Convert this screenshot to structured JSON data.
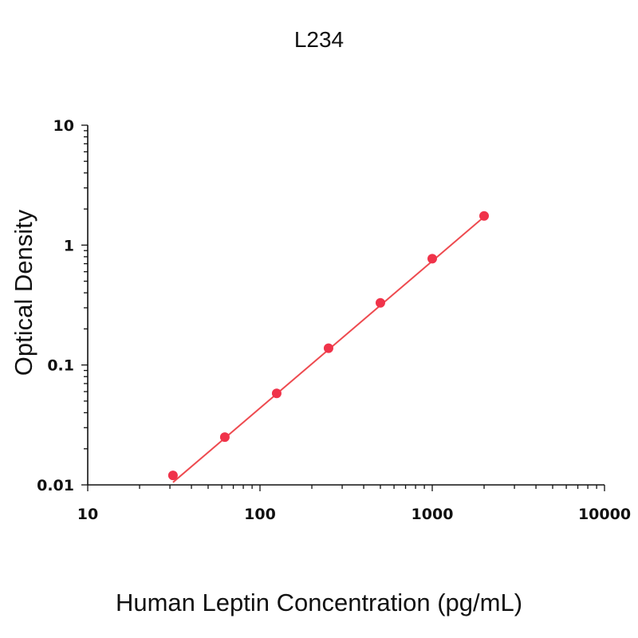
{
  "chart_data": {
    "type": "scatter",
    "title": "L234",
    "xlabel": "Human Leptin Concentration (pg/mL)",
    "ylabel": "Optical Density",
    "x_scale": "log",
    "y_scale": "log",
    "xlim": [
      10,
      10000
    ],
    "ylim": [
      0.01,
      10
    ],
    "x_ticks": [
      10,
      100,
      1000,
      10000
    ],
    "x_tick_labels": [
      "10",
      "100",
      "1000",
      "10000"
    ],
    "y_ticks": [
      0.01,
      0.1,
      1,
      10
    ],
    "y_tick_labels": [
      "0.01",
      "0.1",
      "1",
      "10"
    ],
    "grid": false,
    "series": [
      {
        "x": [
          31.25,
          62.5,
          125,
          250,
          500,
          1000,
          2000
        ],
        "y": [
          0.012,
          0.025,
          0.058,
          0.138,
          0.33,
          0.77,
          1.75
        ],
        "fit_line": {
          "x": [
            31.25,
            2000
          ],
          "y": [
            0.0105,
            1.72
          ]
        },
        "color": "#f0334a",
        "line_color": "#ee4a4f"
      }
    ]
  }
}
